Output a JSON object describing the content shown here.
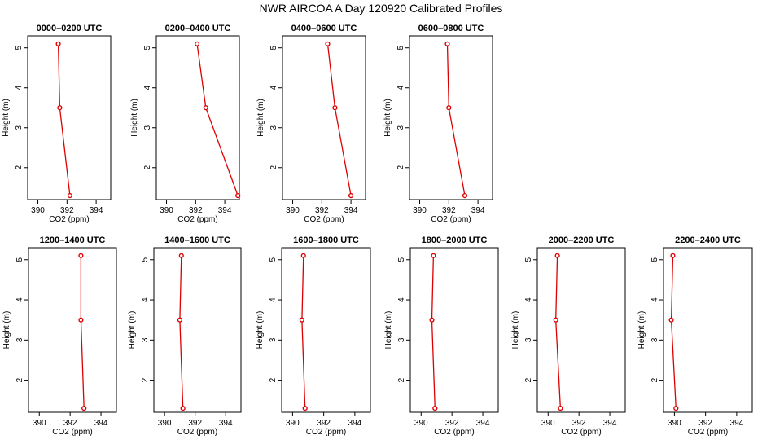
{
  "title": "NWR AIRCOA A  Day 120920  Calibrated Profiles",
  "chart_data": [
    {
      "type": "line",
      "title": "0000–0200 UTC",
      "xlabel": "CO2 (ppm)",
      "ylabel": "Height (m)",
      "xlim": [
        389.3,
        395
      ],
      "ylim": [
        1.2,
        5.3
      ],
      "xticks": [
        390,
        392,
        394
      ],
      "yticks": [
        2,
        3,
        4,
        5
      ],
      "x": [
        391.4,
        391.5,
        392.2
      ],
      "y": [
        5.1,
        3.5,
        1.3
      ],
      "color": "#dd0000"
    },
    {
      "type": "line",
      "title": "0200–0400 UTC",
      "xlabel": "CO2 (ppm)",
      "ylabel": "Height (m)",
      "xlim": [
        389.3,
        395
      ],
      "ylim": [
        1.2,
        5.3
      ],
      "xticks": [
        390,
        392,
        394
      ],
      "yticks": [
        2,
        3,
        4,
        5
      ],
      "x": [
        392.1,
        392.7,
        394.9
      ],
      "y": [
        5.1,
        3.5,
        1.3
      ],
      "color": "#dd0000"
    },
    {
      "type": "line",
      "title": "0400–0600 UTC",
      "xlabel": "CO2 (ppm)",
      "ylabel": "Height (m)",
      "xlim": [
        389.3,
        395
      ],
      "ylim": [
        1.2,
        5.3
      ],
      "xticks": [
        390,
        392,
        394
      ],
      "yticks": [
        2,
        3,
        4,
        5
      ],
      "x": [
        392.4,
        392.9,
        394.0
      ],
      "y": [
        5.1,
        3.5,
        1.3
      ],
      "color": "#dd0000"
    },
    {
      "type": "line",
      "title": "0600–0800 UTC",
      "xlabel": "CO2 (ppm)",
      "ylabel": "Height (m)",
      "xlim": [
        389.3,
        395
      ],
      "ylim": [
        1.2,
        5.3
      ],
      "xticks": [
        390,
        392,
        394
      ],
      "yticks": [
        2,
        3,
        4,
        5
      ],
      "x": [
        391.9,
        392.0,
        393.1
      ],
      "y": [
        5.1,
        3.5,
        1.3
      ],
      "color": "#dd0000"
    },
    {
      "type": "line",
      "title": "1200–1400 UTC",
      "xlabel": "CO2 (ppm)",
      "ylabel": "Height (m)",
      "xlim": [
        389.3,
        395
      ],
      "ylim": [
        1.2,
        5.3
      ],
      "xticks": [
        390,
        392,
        394
      ],
      "yticks": [
        2,
        3,
        4,
        5
      ],
      "x": [
        392.7,
        392.7,
        392.9
      ],
      "y": [
        5.1,
        3.5,
        1.3
      ],
      "color": "#dd0000"
    },
    {
      "type": "line",
      "title": "1400–1600 UTC",
      "xlabel": "CO2 (ppm)",
      "ylabel": "Height (m)",
      "xlim": [
        389.3,
        395
      ],
      "ylim": [
        1.2,
        5.3
      ],
      "xticks": [
        390,
        392,
        394
      ],
      "yticks": [
        2,
        3,
        4,
        5
      ],
      "x": [
        391.1,
        391.0,
        391.2
      ],
      "y": [
        5.1,
        3.5,
        1.3
      ],
      "color": "#dd0000"
    },
    {
      "type": "line",
      "title": "1600–1800 UTC",
      "xlabel": "CO2 (ppm)",
      "ylabel": "Height (m)",
      "xlim": [
        389.3,
        395
      ],
      "ylim": [
        1.2,
        5.3
      ],
      "xticks": [
        390,
        392,
        394
      ],
      "yticks": [
        2,
        3,
        4,
        5
      ],
      "x": [
        390.7,
        390.6,
        390.8
      ],
      "y": [
        5.1,
        3.5,
        1.3
      ],
      "color": "#dd0000"
    },
    {
      "type": "line",
      "title": "1800–2000 UTC",
      "xlabel": "CO2 (ppm)",
      "ylabel": "Height (m)",
      "xlim": [
        389.3,
        395
      ],
      "ylim": [
        1.2,
        5.3
      ],
      "xticks": [
        390,
        392,
        394
      ],
      "yticks": [
        2,
        3,
        4,
        5
      ],
      "x": [
        390.8,
        390.7,
        390.9
      ],
      "y": [
        5.1,
        3.5,
        1.3
      ],
      "color": "#dd0000"
    },
    {
      "type": "line",
      "title": "2000–2200 UTC",
      "xlabel": "CO2 (ppm)",
      "ylabel": "Height (m)",
      "xlim": [
        389.3,
        395
      ],
      "ylim": [
        1.2,
        5.3
      ],
      "xticks": [
        390,
        392,
        394
      ],
      "yticks": [
        2,
        3,
        4,
        5
      ],
      "x": [
        390.6,
        390.5,
        390.8
      ],
      "y": [
        5.1,
        3.5,
        1.3
      ],
      "color": "#dd0000"
    },
    {
      "type": "line",
      "title": "2200–2400 UTC",
      "xlabel": "CO2 (ppm)",
      "ylabel": "Height (m)",
      "xlim": [
        389.3,
        395
      ],
      "ylim": [
        1.2,
        5.3
      ],
      "xticks": [
        390,
        392,
        394
      ],
      "yticks": [
        2,
        3,
        4,
        5
      ],
      "x": [
        389.9,
        389.8,
        390.1
      ],
      "y": [
        5.1,
        3.5,
        1.3
      ],
      "color": "#dd0000"
    }
  ]
}
